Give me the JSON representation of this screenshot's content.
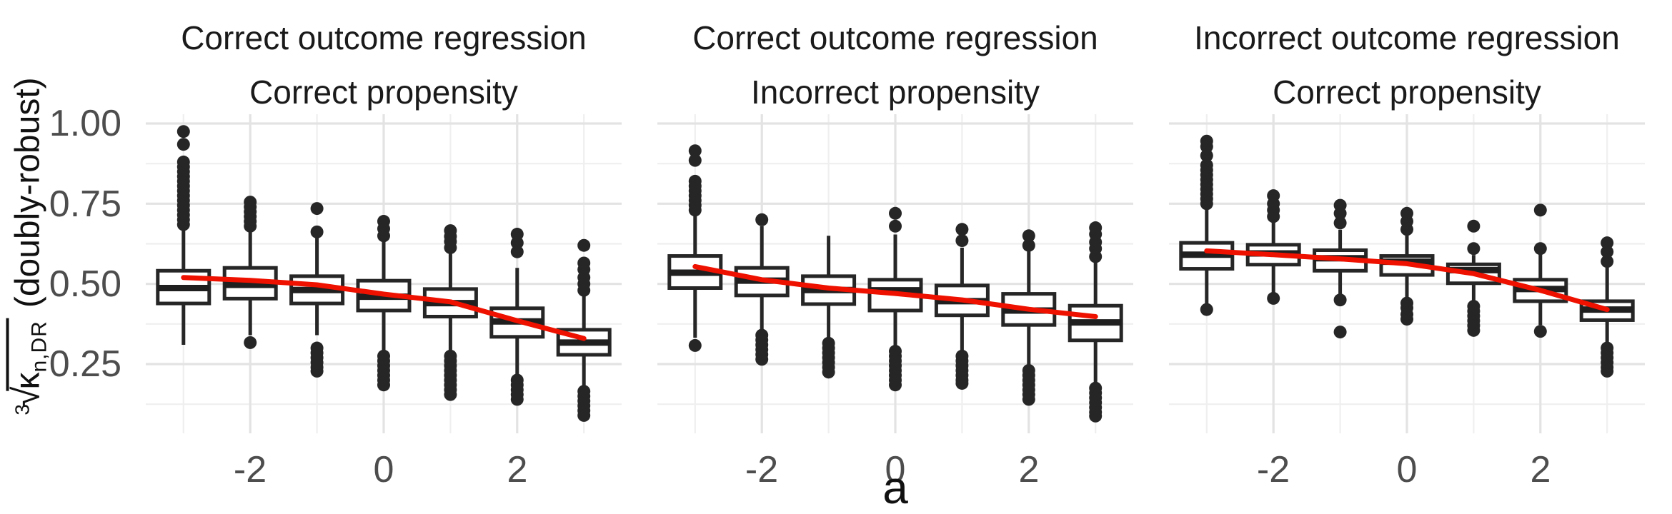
{
  "figure": {
    "background": "#ffffff",
    "colors": {
      "box_stroke": "#262626",
      "box_fill": "#ffffff",
      "median": "#1f1f1f",
      "outlier": "#262626",
      "trend": "#ee1100",
      "grid_major": "#e3e3e3",
      "grid_minor": "#efefef",
      "tick_text": "#4d4d4d",
      "title_text": "#1a1a1a"
    },
    "y_axis": {
      "label": {
        "root_index": "3",
        "radical_sign": "√",
        "radicand": "κ",
        "subscript": "n,DR",
        "suffix": "(doubly-robust)"
      },
      "ticks": [
        {
          "label": "1.00",
          "value": 1.0
        },
        {
          "label": "0.75",
          "value": 0.75
        },
        {
          "label": "0.50",
          "value": 0.5
        },
        {
          "label": "0.25",
          "value": 0.25
        }
      ],
      "minor_values": [
        0.875,
        0.625,
        0.375,
        0.125
      ]
    },
    "x_axis": {
      "label": "a",
      "ticks": [
        {
          "label": "-2",
          "value": -2
        },
        {
          "label": "0",
          "value": 0
        },
        {
          "label": "2",
          "value": 2
        }
      ],
      "minor_values": [
        -3,
        -1,
        1,
        3
      ]
    }
  },
  "chart_data": {
    "type": "boxplot",
    "xlabel": "a",
    "ylabel": "∛(κ_n,DR)  (doubly-robust)",
    "x_values": [
      -3,
      -2,
      -1,
      0,
      1,
      2,
      3
    ],
    "x_tick_labels": [
      "-2",
      "0",
      "2"
    ],
    "ylim_displayed": [
      0.03,
      1.03
    ],
    "grid": true,
    "facets": [
      {
        "title_line1": "Correct outcome regression",
        "title_line2": "Correct propensity",
        "boxes": [
          {
            "a": -3,
            "low": 0.31,
            "q1": 0.439,
            "median": 0.487,
            "q3": 0.541,
            "high": 0.675,
            "outliers": [
              0.685,
              0.7,
              0.715,
              0.73,
              0.745,
              0.76,
              0.775,
              0.79,
              0.805,
              0.82,
              0.835,
              0.85,
              0.865,
              0.88,
              0.935,
              0.975
            ]
          },
          {
            "a": -2,
            "low": 0.34,
            "q1": 0.454,
            "median": 0.497,
            "q3": 0.55,
            "high": 0.668,
            "outliers": [
              0.68,
              0.695,
              0.71,
              0.725,
              0.74,
              0.755,
              0.317
            ]
          },
          {
            "a": -1,
            "low": 0.34,
            "q1": 0.439,
            "median": 0.481,
            "q3": 0.524,
            "high": 0.645,
            "outliers": [
              0.662,
              0.735,
              0.3,
              0.285,
              0.27,
              0.255,
              0.24,
              0.228
            ]
          },
          {
            "a": 0,
            "low": 0.283,
            "q1": 0.417,
            "median": 0.46,
            "q3": 0.51,
            "high": 0.633,
            "outliers": [
              0.65,
              0.672,
              0.695,
              0.275,
              0.26,
              0.245,
              0.23,
              0.215,
              0.2,
              0.185
            ]
          },
          {
            "a": 1,
            "low": 0.288,
            "q1": 0.398,
            "median": 0.44,
            "q3": 0.484,
            "high": 0.599,
            "outliers": [
              0.613,
              0.632,
              0.648,
              0.666,
              0.275,
              0.26,
              0.245,
              0.23,
              0.215,
              0.2,
              0.185,
              0.17,
              0.155
            ]
          },
          {
            "a": 2,
            "low": 0.213,
            "q1": 0.335,
            "median": 0.383,
            "q3": 0.424,
            "high": 0.55,
            "outliers": [
              0.6,
              0.628,
              0.655,
              0.2,
              0.185,
              0.17,
              0.155,
              0.14
            ]
          },
          {
            "a": 3,
            "low": 0.176,
            "q1": 0.279,
            "median": 0.317,
            "q3": 0.357,
            "high": 0.465,
            "outliers": [
              0.48,
              0.5,
              0.52,
              0.545,
              0.565,
              0.62,
              0.165,
              0.15,
              0.135,
              0.12,
              0.105,
              0.09
            ]
          }
        ],
        "trend": [
          [
            -3,
            0.52
          ],
          [
            -2,
            0.511
          ],
          [
            -1,
            0.497
          ],
          [
            0,
            0.468
          ],
          [
            1,
            0.444
          ],
          [
            2,
            0.385
          ],
          [
            3,
            0.33
          ]
        ]
      },
      {
        "title_line1": "Correct outcome regression",
        "title_line2": "Incorrect propensity",
        "boxes": [
          {
            "a": -3,
            "low": 0.332,
            "q1": 0.487,
            "median": 0.535,
            "q3": 0.587,
            "high": 0.715,
            "outliers": [
              0.73,
              0.745,
              0.76,
              0.775,
              0.79,
              0.805,
              0.82,
              0.885,
              0.915,
              0.308
            ]
          },
          {
            "a": -2,
            "low": 0.355,
            "q1": 0.464,
            "median": 0.51,
            "q3": 0.55,
            "high": 0.68,
            "outliers": [
              0.7,
              0.34,
              0.325,
              0.31,
              0.295,
              0.28,
              0.265
            ]
          },
          {
            "a": -1,
            "low": 0.324,
            "q1": 0.437,
            "median": 0.481,
            "q3": 0.524,
            "high": 0.65,
            "outliers": [
              0.315,
              0.3,
              0.285,
              0.27,
              0.255,
              0.24,
              0.225
            ]
          },
          {
            "a": 0,
            "low": 0.298,
            "q1": 0.417,
            "median": 0.48,
            "q3": 0.513,
            "high": 0.654,
            "outliers": [
              0.68,
              0.72,
              0.29,
              0.275,
              0.26,
              0.245,
              0.23,
              0.215,
              0.2,
              0.185
            ]
          },
          {
            "a": 1,
            "low": 0.283,
            "q1": 0.402,
            "median": 0.446,
            "q3": 0.495,
            "high": 0.613,
            "outliers": [
              0.635,
              0.67,
              0.275,
              0.26,
              0.245,
              0.23,
              0.215,
              0.2,
              0.19
            ]
          },
          {
            "a": 2,
            "low": 0.239,
            "q1": 0.372,
            "median": 0.417,
            "q3": 0.469,
            "high": 0.602,
            "outliers": [
              0.62,
              0.65,
              0.23,
              0.215,
              0.2,
              0.185,
              0.17,
              0.155,
              0.14
            ]
          },
          {
            "a": 3,
            "low": 0.183,
            "q1": 0.324,
            "median": 0.38,
            "q3": 0.432,
            "high": 0.569,
            "outliers": [
              0.585,
              0.61,
              0.63,
              0.655,
              0.675,
              0.175,
              0.16,
              0.145,
              0.13,
              0.115,
              0.1,
              0.088
            ]
          }
        ],
        "trend": [
          [
            -3,
            0.554
          ],
          [
            -2,
            0.513
          ],
          [
            -1,
            0.487
          ],
          [
            0,
            0.47
          ],
          [
            1,
            0.45
          ],
          [
            2,
            0.421
          ],
          [
            3,
            0.398
          ]
        ]
      },
      {
        "title_line1": "Incorrect outcome regression",
        "title_line2": "Correct propensity",
        "boxes": [
          {
            "a": -3,
            "low": 0.439,
            "q1": 0.547,
            "median": 0.591,
            "q3": 0.628,
            "high": 0.74,
            "outliers": [
              0.75,
              0.765,
              0.78,
              0.795,
              0.81,
              0.825,
              0.84,
              0.855,
              0.87,
              0.9,
              0.928,
              0.945,
              0.42
            ]
          },
          {
            "a": -2,
            "low": 0.469,
            "q1": 0.56,
            "median": 0.595,
            "q3": 0.622,
            "high": 0.695,
            "outliers": [
              0.71,
              0.73,
              0.75,
              0.775,
              0.455
            ]
          },
          {
            "a": -1,
            "low": 0.465,
            "q1": 0.541,
            "median": 0.58,
            "q3": 0.605,
            "high": 0.669,
            "outliers": [
              0.69,
              0.72,
              0.745,
              0.45,
              0.35
            ]
          },
          {
            "a": 0,
            "low": 0.454,
            "q1": 0.528,
            "median": 0.569,
            "q3": 0.587,
            "high": 0.654,
            "outliers": [
              0.67,
              0.695,
              0.72,
              0.44,
              0.425,
              0.405,
              0.39
            ]
          },
          {
            "a": 1,
            "low": 0.439,
            "q1": 0.502,
            "median": 0.543,
            "q3": 0.561,
            "high": 0.59,
            "outliers": [
              0.61,
              0.68,
              0.43,
              0.415,
              0.4,
              0.385,
              0.37,
              0.355
            ]
          },
          {
            "a": 2,
            "low": 0.372,
            "q1": 0.446,
            "median": 0.484,
            "q3": 0.513,
            "high": 0.595,
            "outliers": [
              0.61,
              0.73,
              0.352
            ]
          },
          {
            "a": 3,
            "low": 0.302,
            "q1": 0.387,
            "median": 0.42,
            "q3": 0.446,
            "high": 0.552,
            "outliers": [
              0.57,
              0.6,
              0.628,
              0.3,
              0.285,
              0.27,
              0.255,
              0.24,
              0.228
            ]
          }
        ],
        "trend": [
          [
            -3,
            0.603
          ],
          [
            -2,
            0.591
          ],
          [
            -1,
            0.578
          ],
          [
            0,
            0.563
          ],
          [
            1,
            0.532
          ],
          [
            2,
            0.48
          ],
          [
            3,
            0.42
          ]
        ]
      }
    ]
  }
}
